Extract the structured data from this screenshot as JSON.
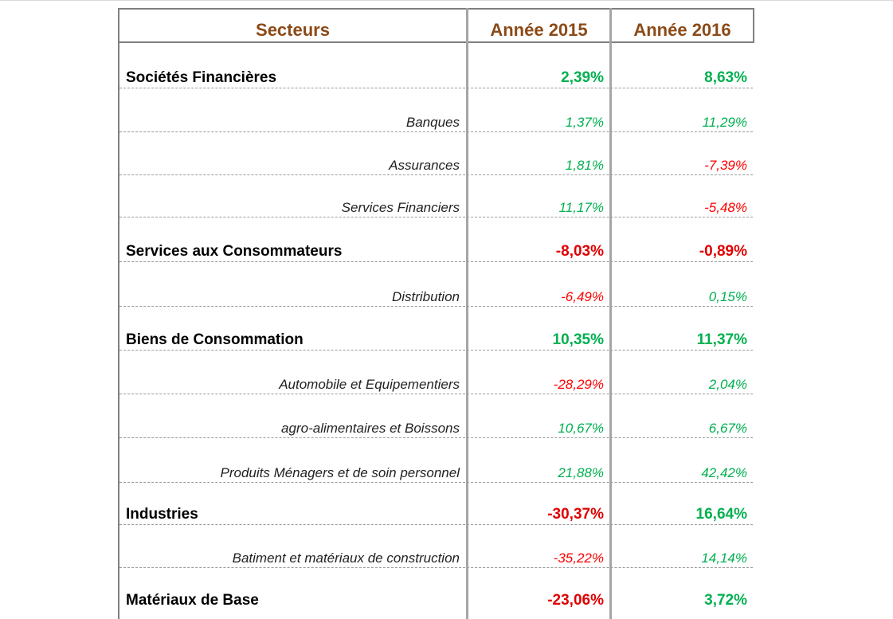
{
  "header": {
    "col_sector": "Secteurs",
    "col_2015": "Année 2015",
    "col_2016": "Année 2016"
  },
  "rows": [
    {
      "label": "Sociétés Financières",
      "type": "main",
      "y2015": "2,39%",
      "y2016": "8,63%",
      "c2015": "pos",
      "c2016": "pos"
    },
    {
      "label": "Banques",
      "type": "minor",
      "y2015": "1,37%",
      "y2016": "11,29%",
      "c2015": "pos",
      "c2016": "pos"
    },
    {
      "label": "Assurances",
      "type": "minor",
      "y2015": "1,81%",
      "y2016": "-7,39%",
      "c2015": "pos",
      "c2016": "neg"
    },
    {
      "label": "Services Financiers",
      "type": "minor",
      "y2015": "11,17%",
      "y2016": "-5,48%",
      "c2015": "pos",
      "c2016": "neg"
    },
    {
      "label": "Services aux Consommateurs",
      "type": "main",
      "y2015": "-8,03%",
      "y2016": "-0,89%",
      "c2015": "neg",
      "c2016": "neg"
    },
    {
      "label": "Distribution",
      "type": "minor",
      "y2015": "-6,49%",
      "y2016": "0,15%",
      "c2015": "neg",
      "c2016": "pos"
    },
    {
      "label": "Biens de Consommation",
      "type": "main",
      "y2015": "10,35%",
      "y2016": "11,37%",
      "c2015": "pos",
      "c2016": "pos"
    },
    {
      "label": "Automobile et Equipementiers",
      "type": "minor",
      "y2015": "-28,29%",
      "y2016": "2,04%",
      "c2015": "neg",
      "c2016": "pos"
    },
    {
      "label": "agro-alimentaires et Boissons",
      "type": "minor",
      "y2015": "10,67%",
      "y2016": "6,67%",
      "c2015": "pos",
      "c2016": "pos"
    },
    {
      "label": "Produits Ménagers et de soin personnel",
      "type": "minor",
      "y2015": "21,88%",
      "y2016": "42,42%",
      "c2015": "pos",
      "c2016": "pos"
    },
    {
      "label": "Industries",
      "type": "main",
      "y2015": "-30,37%",
      "y2016": "16,64%",
      "c2015": "neg",
      "c2016": "pos"
    },
    {
      "label": "Batiment et matériaux de construction",
      "type": "minor",
      "y2015": "-35,22%",
      "y2016": "14,14%",
      "c2015": "neg",
      "c2016": "pos"
    },
    {
      "label": "Matériaux de Base",
      "type": "main",
      "y2015": "-23,06%",
      "y2016": "3,72%",
      "c2015": "neg",
      "c2016": "pos"
    }
  ]
}
